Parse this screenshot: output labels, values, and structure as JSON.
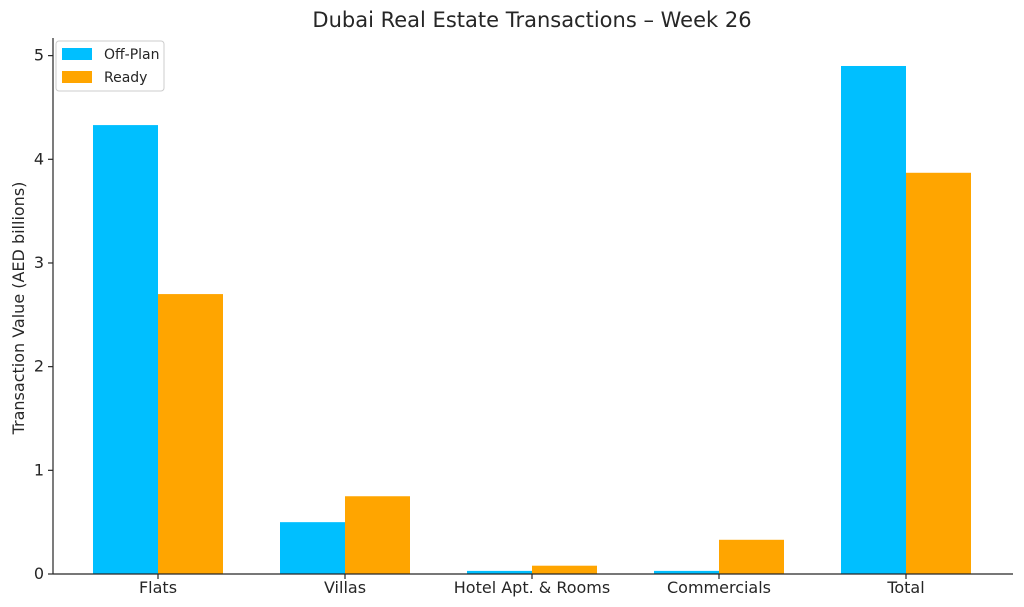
{
  "chart_data": {
    "type": "bar",
    "title": "Dubai Real Estate Transactions – Week 26",
    "xlabel": "",
    "ylabel": "Transaction Value (AED billions)",
    "categories": [
      "Flats",
      "Villas",
      "Hotel Apt. & Rooms",
      "Commercials",
      "Total"
    ],
    "series": [
      {
        "name": "Off-Plan",
        "color": "#00BFFF",
        "values": [
          4.33,
          0.5,
          0.03,
          0.03,
          4.9
        ]
      },
      {
        "name": "Ready",
        "color": "#FFA500",
        "values": [
          2.7,
          0.75,
          0.08,
          0.33,
          3.87
        ]
      }
    ],
    "ylim": [
      0,
      5.17
    ],
    "yticks": [
      0,
      1,
      2,
      3,
      4,
      5
    ],
    "grid": false,
    "legend_position": "top-left"
  }
}
